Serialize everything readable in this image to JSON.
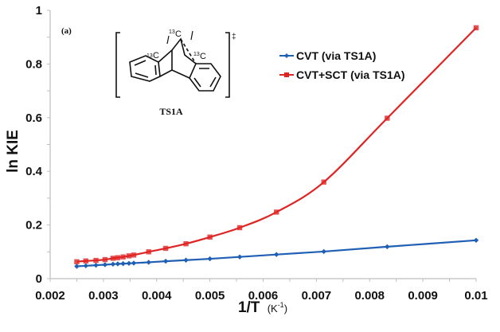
{
  "chart_data": {
    "type": "line",
    "title": "",
    "panel_label": "(a)",
    "xlabel": "1/T",
    "xlabel_unit": "(K-1)",
    "xlabel_unit_base": "(K",
    "xlabel_unit_sup": "-1",
    "xlabel_unit_close": ")",
    "ylabel": "ln KIE",
    "xlim": [
      0.002,
      0.01
    ],
    "ylim": [
      0,
      1
    ],
    "x_ticks": [
      "0.002",
      "0.003",
      "0.004",
      "0.005",
      "0.006",
      "0.007",
      "0.008",
      "0.009",
      "0.01"
    ],
    "y_ticks": [
      "0",
      "0.2",
      "0.4",
      "0.6",
      "0.8",
      "1"
    ],
    "y_minor_step": 0.1,
    "x_minor_step": 0.0005,
    "grid": false,
    "legend_position": "top-right",
    "series": [
      {
        "name": "CVT (via TS1A)",
        "color": "#1f5fb4",
        "marker": "diamond",
        "x": [
          0.0025,
          0.00267,
          0.00286,
          0.00303,
          0.00318,
          0.00327,
          0.00337,
          0.00348,
          0.00357,
          0.00385,
          0.00417,
          0.00455,
          0.005,
          0.00556,
          0.00625,
          0.00714,
          0.00833,
          0.01
        ],
        "y": [
          0.046,
          0.048,
          0.05,
          0.052,
          0.054,
          0.055,
          0.056,
          0.057,
          0.058,
          0.061,
          0.065,
          0.069,
          0.074,
          0.081,
          0.09,
          0.101,
          0.119,
          0.143
        ]
      },
      {
        "name": "CVT+SCT (via TS1A)",
        "color": "#e02424",
        "marker": "square",
        "x": [
          0.0025,
          0.00267,
          0.00286,
          0.00303,
          0.00318,
          0.00327,
          0.00337,
          0.00348,
          0.00357,
          0.00385,
          0.00417,
          0.00455,
          0.005,
          0.00556,
          0.00625,
          0.00714,
          0.00833,
          0.01
        ],
        "y": [
          0.063,
          0.066,
          0.068,
          0.071,
          0.076,
          0.078,
          0.081,
          0.085,
          0.088,
          0.1,
          0.113,
          0.13,
          0.155,
          0.19,
          0.248,
          0.36,
          0.598,
          0.935
        ]
      }
    ]
  },
  "structure": {
    "label": "TS1A",
    "isotope_mass": "13",
    "atom": "C",
    "ts_symbol": "‡"
  }
}
